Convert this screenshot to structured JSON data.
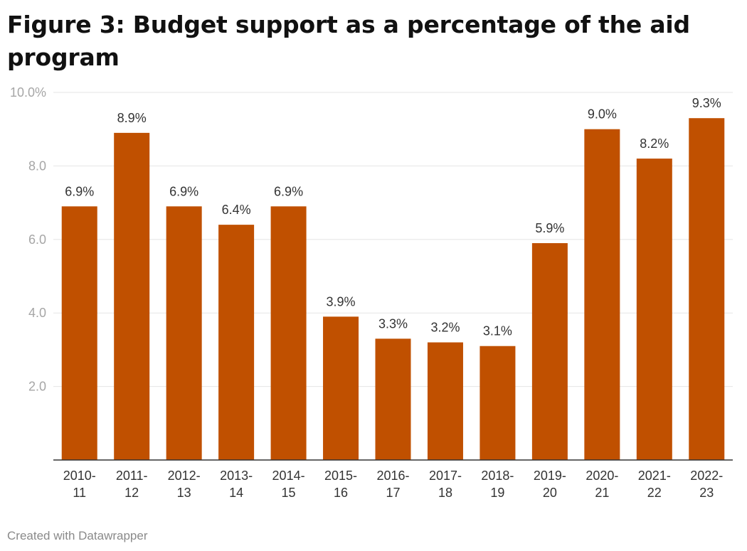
{
  "header": {
    "title": "Figure 3: Budget support as a percentage of the aid program"
  },
  "footer": {
    "credit": "Created with Datawrapper"
  },
  "colors": {
    "bar": "#c05000",
    "grid": "#e5e5e5",
    "axis": "#333333"
  },
  "chart_data": {
    "type": "bar",
    "title": "Figure 3: Budget support as a percentage of the aid program",
    "xlabel": "",
    "ylabel": "",
    "categories": [
      [
        "2010-",
        "11"
      ],
      [
        "2011-",
        "12"
      ],
      [
        "2012-",
        "13"
      ],
      [
        "2013-",
        "14"
      ],
      [
        "2014-",
        "15"
      ],
      [
        "2015-",
        "16"
      ],
      [
        "2016-",
        "17"
      ],
      [
        "2017-",
        "18"
      ],
      [
        "2018-",
        "19"
      ],
      [
        "2019-",
        "20"
      ],
      [
        "2020-",
        "21"
      ],
      [
        "2021-",
        "22"
      ],
      [
        "2022-",
        "23"
      ]
    ],
    "values": [
      6.9,
      8.9,
      6.9,
      6.4,
      6.9,
      3.9,
      3.3,
      3.2,
      3.1,
      5.9,
      9.0,
      8.2,
      9.3
    ],
    "value_labels": [
      "6.9%",
      "8.9%",
      "6.9%",
      "6.4%",
      "6.9%",
      "3.9%",
      "3.3%",
      "3.2%",
      "3.1%",
      "5.9%",
      "9.0%",
      "8.2%",
      "9.3%"
    ],
    "ylim": [
      0,
      10
    ],
    "yticks": [
      {
        "value": 10,
        "label": "10.0%"
      },
      {
        "value": 8,
        "label": "8.0"
      },
      {
        "value": 6,
        "label": "6.0"
      },
      {
        "value": 4,
        "label": "4.0"
      },
      {
        "value": 2,
        "label": "2.0"
      }
    ],
    "grid": true,
    "legend": "none"
  }
}
